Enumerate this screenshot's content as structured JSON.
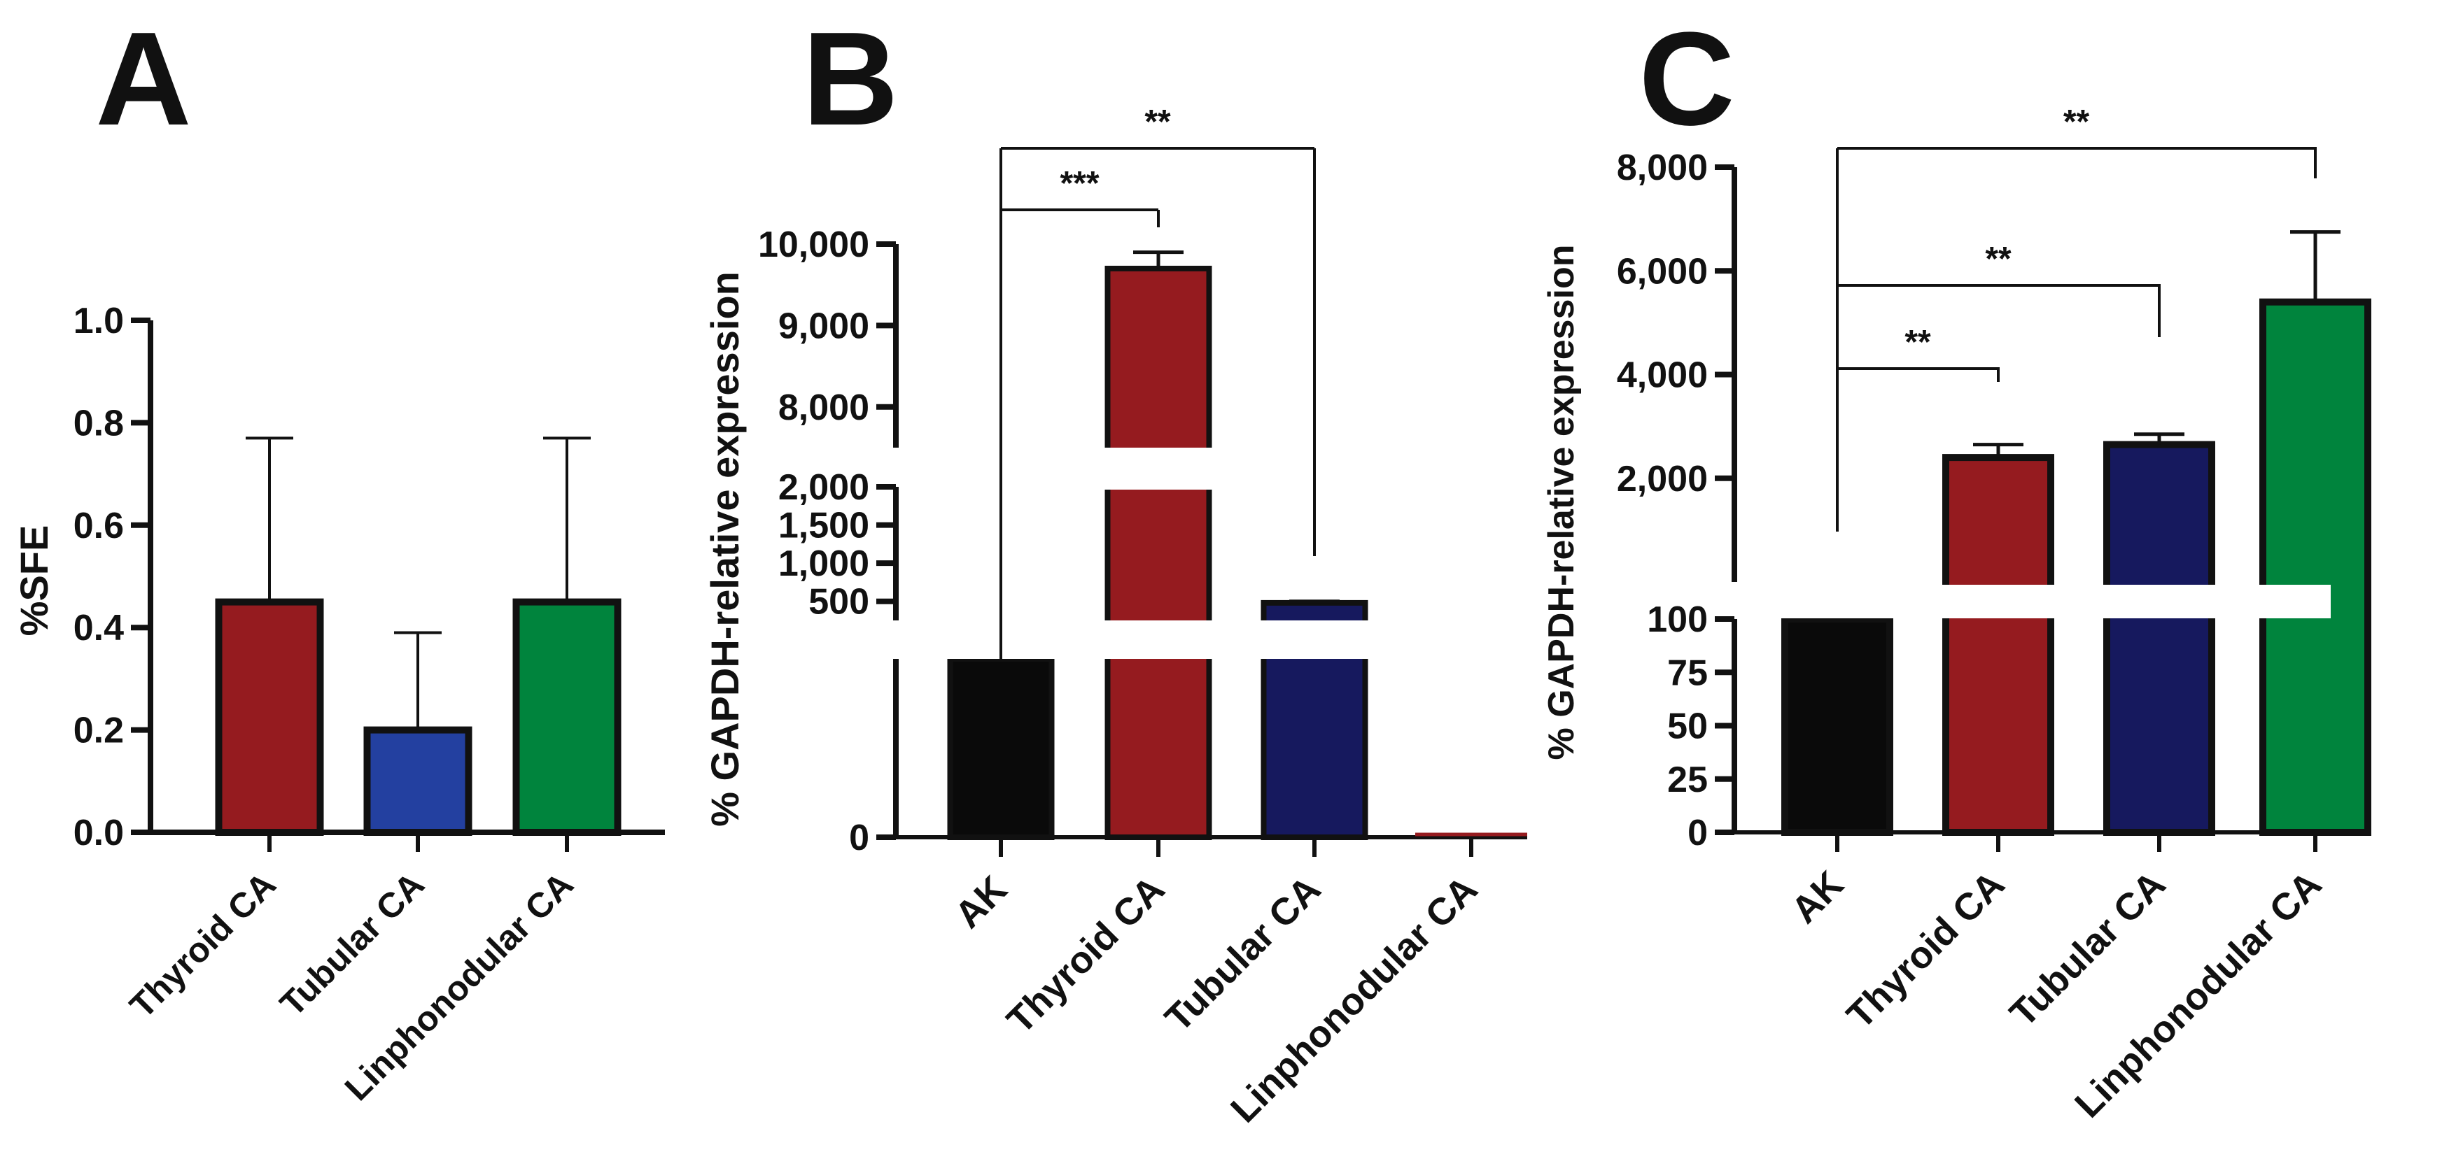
{
  "colors": {
    "black": "#0a0a0a",
    "thyroid": "#951b1f",
    "tubular_a": "#2340a0",
    "tubular_bc": "#16195e",
    "linphonodular": "#00843d",
    "outline": "#111111"
  },
  "chart_data": [
    {
      "panel": "A",
      "type": "bar",
      "ylabel": "%SFE",
      "ylim": [
        0,
        1.0
      ],
      "yticks": [
        "0.0",
        "0.2",
        "0.4",
        "0.6",
        "0.8",
        "1.0"
      ],
      "categories": [
        "Thyroid CA",
        "Tubular CA",
        "Linphonodular CA"
      ],
      "values": [
        0.45,
        0.2,
        0.45
      ],
      "errors": [
        0.32,
        0.19,
        0.32
      ],
      "colors": [
        "#951b1f",
        "#2340a0",
        "#00843d"
      ],
      "significance": []
    },
    {
      "panel": "B",
      "type": "bar",
      "ylabel": "% GAPDH-relative expression",
      "axis_note": "broken y-axis: segments 0–100, 250–2000, 7500–10000",
      "yticks": [
        "0",
        "500",
        "1,000",
        "1,500",
        "2,000",
        "8,000",
        "9,000",
        "10,000"
      ],
      "categories": [
        "AK",
        "Thyroid CA",
        "Tubular CA",
        "Linphonodular CA"
      ],
      "values": [
        100,
        9700,
        480,
        2
      ],
      "errors": [
        0,
        200,
        20,
        1
      ],
      "colors": [
        "#0a0a0a",
        "#951b1f",
        "#16195e",
        "#951b1f"
      ],
      "significance": [
        {
          "from": "AK",
          "to": "Thyroid CA",
          "label": "***"
        },
        {
          "from": "AK",
          "to": "Tubular CA",
          "label": "**"
        }
      ]
    },
    {
      "panel": "C",
      "type": "bar",
      "ylabel": "% GAPDH-relative expression",
      "axis_note": "broken y-axis: segments 0–100, 0–8000",
      "yticks": [
        "0",
        "25",
        "50",
        "75",
        "100",
        "2,000",
        "4,000",
        "6,000",
        "8,000"
      ],
      "categories": [
        "AK",
        "Thyroid CA",
        "Tubular CA",
        "Linphonodular CA"
      ],
      "values": [
        100,
        2400,
        2650,
        5400
      ],
      "errors": [
        0,
        250,
        200,
        1350
      ],
      "colors": [
        "#0a0a0a",
        "#951b1f",
        "#16195e",
        "#00843d"
      ],
      "significance": [
        {
          "from": "AK",
          "to": "Thyroid CA",
          "label": "**"
        },
        {
          "from": "AK",
          "to": "Tubular CA",
          "label": "**"
        },
        {
          "from": "AK",
          "to": "Linphonodular CA",
          "label": "**"
        }
      ]
    }
  ]
}
